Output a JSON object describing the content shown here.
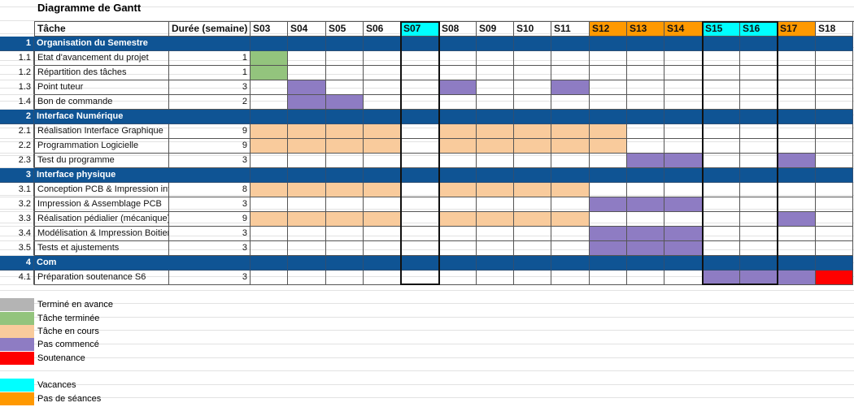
{
  "title": "Diagramme de Gantt",
  "headers": {
    "task": "Tâche",
    "duration": "Durée (semaine)"
  },
  "weeks": [
    "S03",
    "S04",
    "S05",
    "S06",
    "S07",
    "S08",
    "S09",
    "S10",
    "S11",
    "S12",
    "S13",
    "S14",
    "S15",
    "S16",
    "S17",
    "S18"
  ],
  "week_types": [
    "",
    "",
    "",
    "",
    "vacances",
    "",
    "",
    "",
    "",
    "pas_de_seances",
    "pas_de_seances",
    "pas_de_seances",
    "vacances",
    "vacances",
    "pas_de_seances",
    ""
  ],
  "colors": {
    "section": "#0f5494",
    "avance": "#b4b4b4",
    "terminee": "#93c47d",
    "en_cours": "#f9cb9c",
    "pas_commence": "#8e7cc3",
    "soutenance": "#ff0000",
    "vacances": "#00ffff",
    "pas_de_seances": "#ff9900"
  },
  "rows": [
    {
      "id": "1",
      "name": "Organisation du Semestre",
      "section": true
    },
    {
      "id": "1.1",
      "name": "Etat d'avancement du projet",
      "duration": "1",
      "cells": {
        "0": "terminee"
      }
    },
    {
      "id": "1.2",
      "name": "Répartition des tâches",
      "duration": "1",
      "cells": {
        "0": "terminee"
      }
    },
    {
      "id": "1.3",
      "name": "Point tuteur",
      "duration": "3",
      "cells": {
        "1": "pas_commence",
        "5": "pas_commence",
        "8": "pas_commence"
      }
    },
    {
      "id": "1.4",
      "name": "Bon de commande",
      "duration": "2",
      "cells": {
        "1": "pas_commence",
        "2": "pas_commence"
      }
    },
    {
      "id": "2",
      "name": "Interface Numérique",
      "section": true
    },
    {
      "id": "2.1",
      "name": "Réalisation Interface Graphique",
      "duration": "9",
      "cells": {
        "0": "en_cours",
        "1": "en_cours",
        "2": "en_cours",
        "3": "en_cours",
        "5": "en_cours",
        "6": "en_cours",
        "7": "en_cours",
        "8": "en_cours",
        "9": "en_cours"
      }
    },
    {
      "id": "2.2",
      "name": "Programmation Logicielle",
      "duration": "9",
      "cells": {
        "0": "en_cours",
        "1": "en_cours",
        "2": "en_cours",
        "3": "en_cours",
        "5": "en_cours",
        "6": "en_cours",
        "7": "en_cours",
        "8": "en_cours",
        "9": "en_cours"
      }
    },
    {
      "id": "2.3",
      "name": "Test du programme",
      "duration": "3",
      "cells": {
        "10": "pas_commence",
        "11": "pas_commence",
        "14": "pas_commence"
      }
    },
    {
      "id": "3",
      "name": "Interface physique",
      "section": true
    },
    {
      "id": "3.1",
      "name": "Conception PCB & Impression inter",
      "duration": "8",
      "cells": {
        "0": "en_cours",
        "1": "en_cours",
        "2": "en_cours",
        "3": "en_cours",
        "5": "en_cours",
        "6": "en_cours",
        "7": "en_cours",
        "8": "en_cours"
      }
    },
    {
      "id": "3.2",
      "name": "Impression & Assemblage PCB",
      "duration": "3",
      "cells": {
        "9": "pas_commence",
        "10": "pas_commence",
        "11": "pas_commence"
      }
    },
    {
      "id": "3.3",
      "name": "Réalisation pédialier (mécanique)",
      "duration": "9",
      "cells": {
        "0": "en_cours",
        "1": "en_cours",
        "2": "en_cours",
        "3": "en_cours",
        "5": "en_cours",
        "6": "en_cours",
        "7": "en_cours",
        "8": "en_cours",
        "14": "pas_commence"
      }
    },
    {
      "id": "3.4",
      "name": "Modélisation & Impression Boitier",
      "duration": "3",
      "cells": {
        "9": "pas_commence",
        "10": "pas_commence",
        "11": "pas_commence"
      }
    },
    {
      "id": "3.5",
      "name": "Tests et ajustements",
      "duration": "3",
      "cells": {
        "9": "pas_commence",
        "10": "pas_commence",
        "11": "pas_commence"
      }
    },
    {
      "id": "4",
      "name": "Com",
      "section": true
    },
    {
      "id": "4.1",
      "name": "Préparation soutenance S6",
      "duration": "3",
      "cells": {
        "12": "pas_commence",
        "13": "pas_commence",
        "14": "pas_commence",
        "15": "soutenance"
      }
    }
  ],
  "legend": [
    {
      "label": "Terminé en avance",
      "color": "avance"
    },
    {
      "label": "Tâche terminée",
      "color": "terminee"
    },
    {
      "label": "Tâche en cours",
      "color": "en_cours"
    },
    {
      "label": "Pas commencé",
      "color": "pas_commence"
    },
    {
      "label": "Soutenance",
      "color": "soutenance"
    },
    {
      "label": "Vacances",
      "color": "vacances"
    },
    {
      "label": "Pas de séances",
      "color": "pas_de_seances"
    }
  ]
}
